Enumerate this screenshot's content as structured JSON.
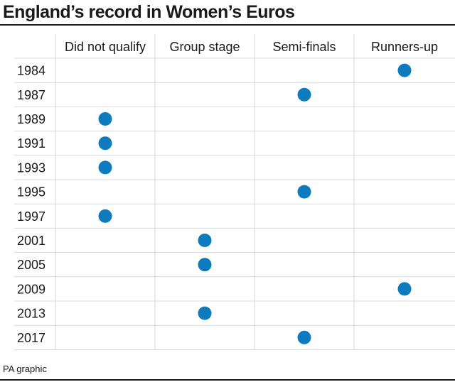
{
  "title": "England’s record in Women’s Euros",
  "credit": "PA graphic",
  "colors": {
    "dot": "#0f7bbf",
    "gridline": "#d9d9d9",
    "text": "#1a1a1a"
  },
  "chart_data": {
    "type": "table",
    "columns": [
      "Did not qualify",
      "Group stage",
      "Semi-finals",
      "Runners-up"
    ],
    "rows": [
      {
        "year": "1984",
        "result": "Runners-up"
      },
      {
        "year": "1987",
        "result": "Semi-finals"
      },
      {
        "year": "1989",
        "result": "Did not qualify"
      },
      {
        "year": "1991",
        "result": "Did not qualify"
      },
      {
        "year": "1993",
        "result": "Did not qualify"
      },
      {
        "year": "1995",
        "result": "Semi-finals"
      },
      {
        "year": "1997",
        "result": "Did not qualify"
      },
      {
        "year": "2001",
        "result": "Group stage"
      },
      {
        "year": "2005",
        "result": "Group stage"
      },
      {
        "year": "2009",
        "result": "Runners-up"
      },
      {
        "year": "2013",
        "result": "Group stage"
      },
      {
        "year": "2017",
        "result": "Semi-finals"
      }
    ]
  }
}
